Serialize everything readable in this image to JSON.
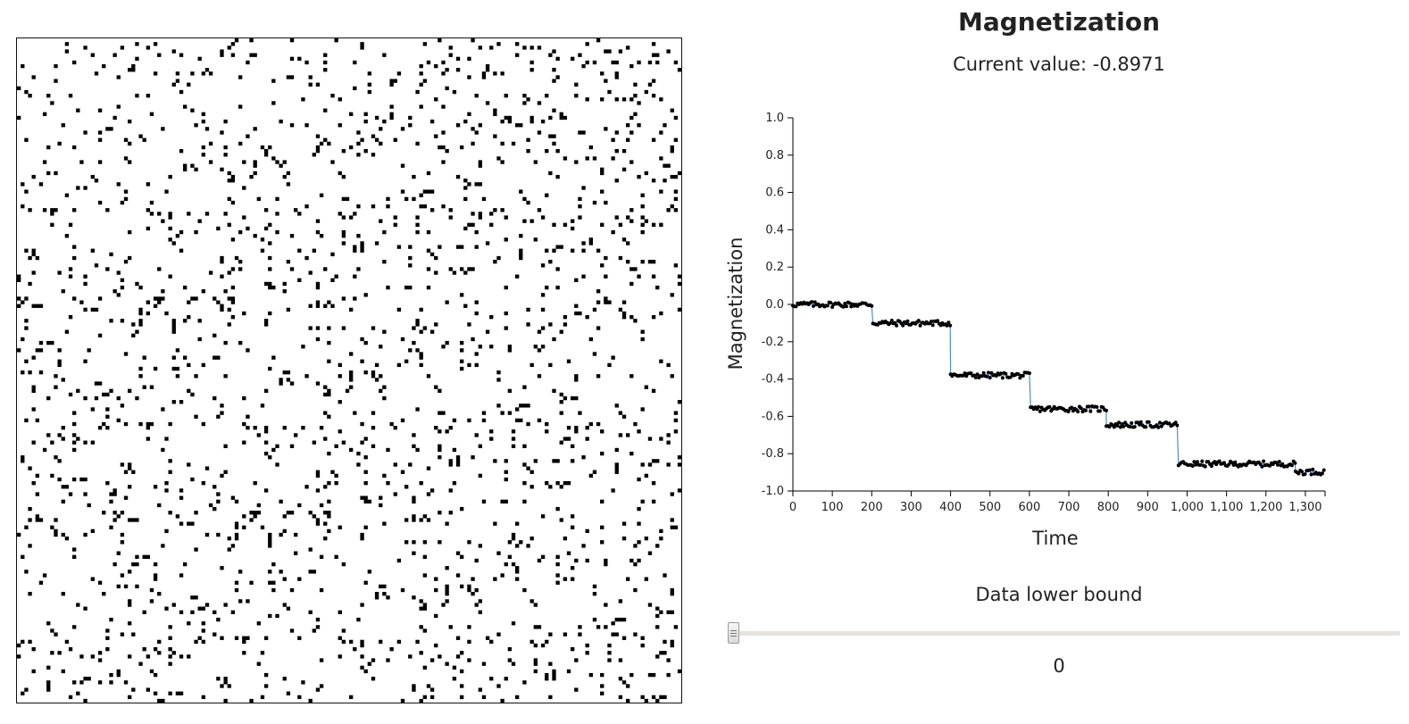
{
  "lattice": {
    "description_semantic": "ising-spin-lattice",
    "spin_up_color": "#ffffff",
    "spin_down_color": "#000000",
    "grid_size": 180,
    "fraction_black": 0.051
  },
  "chart": {
    "title": "Magnetization",
    "current_value_label": "Current value: -0.8971"
  },
  "chart_data": {
    "type": "line",
    "xlabel": "Time",
    "ylabel": "Magnetization",
    "xlim": [
      0,
      1350
    ],
    "ylim": [
      -1.0,
      1.0
    ],
    "x_ticks": [
      "0",
      "100",
      "200",
      "300",
      "400",
      "500",
      "600",
      "700",
      "800",
      "900",
      "1,000",
      "1,100",
      "1,200",
      "1,300"
    ],
    "y_ticks": [
      "1.0",
      "0.8",
      "0.6",
      "0.4",
      "0.2",
      "0.0",
      "-0.2",
      "-0.4",
      "-0.6",
      "-0.8",
      "-1.0"
    ],
    "line_color": "#4a90c8",
    "marker_color": "#000000",
    "grid": false,
    "segments": [
      {
        "x_start": 0,
        "x_end": 203,
        "value": 0.0
      },
      {
        "x_start": 203,
        "x_end": 400,
        "value": -0.1
      },
      {
        "x_start": 400,
        "x_end": 603,
        "value": -0.38
      },
      {
        "x_start": 603,
        "x_end": 795,
        "value": -0.56
      },
      {
        "x_start": 795,
        "x_end": 978,
        "value": -0.645
      },
      {
        "x_start": 978,
        "x_end": 1275,
        "value": -0.855
      },
      {
        "x_start": 1275,
        "x_end": 1350,
        "value": -0.8971
      }
    ]
  },
  "slider": {
    "label": "Data lower bound",
    "value": "0",
    "min": 0,
    "max": 1350
  }
}
